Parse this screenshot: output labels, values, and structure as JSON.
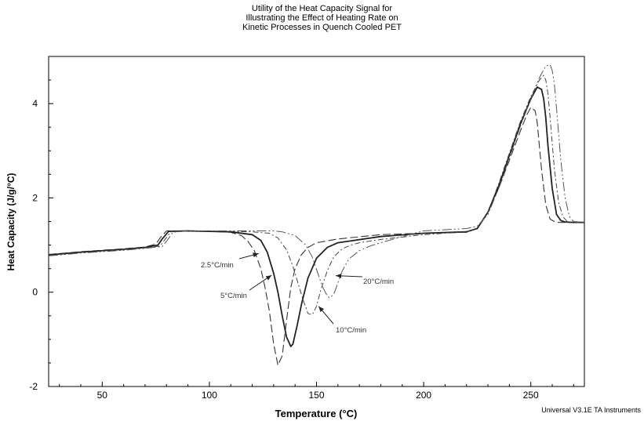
{
  "chart_data": {
    "type": "line",
    "title": [
      "Utility of the Heat Capacity Signal for",
      "Illustrating the Effect of Heating Rate on",
      "Kinetic Processes in Quench Cooled PET"
    ],
    "xlabel": "Temperature  (°C)",
    "ylabel": "Heat Capacity (J/g/°C)",
    "xlim": [
      25,
      275
    ],
    "ylim": [
      -2,
      5
    ],
    "xticks": [
      50,
      100,
      150,
      200,
      250
    ],
    "yticks": [
      -2,
      0,
      2,
      4
    ],
    "grid": false,
    "legend": "none",
    "series": [
      {
        "name": "2.5°C/min",
        "x": [
          25,
          40,
          60,
          70,
          75,
          77,
          80,
          90,
          100,
          110,
          115,
          118,
          121,
          124,
          126,
          128,
          130,
          132,
          134,
          136,
          138,
          140,
          143,
          146,
          150,
          160,
          180,
          200,
          220,
          225,
          230,
          235,
          240,
          245,
          248,
          250,
          252,
          253,
          254,
          255,
          257,
          259,
          261,
          263,
          265,
          270,
          275
        ],
        "y": [
          0.8,
          0.86,
          0.92,
          0.96,
          1.02,
          1.15,
          1.3,
          1.3,
          1.29,
          1.27,
          1.2,
          1.08,
          0.88,
          0.5,
          0.1,
          -0.4,
          -1.1,
          -1.55,
          -1.35,
          -0.6,
          0.1,
          0.5,
          0.8,
          0.95,
          1.05,
          1.13,
          1.22,
          1.25,
          1.27,
          1.35,
          1.7,
          2.2,
          2.8,
          3.4,
          3.75,
          3.92,
          3.85,
          3.6,
          3.1,
          2.6,
          1.85,
          1.55,
          1.5,
          1.48,
          1.48,
          1.48,
          1.48
        ]
      },
      {
        "name": "5°C/min",
        "x": [
          25,
          40,
          60,
          70,
          76,
          78,
          81,
          90,
          100,
          110,
          120,
          124,
          127,
          130,
          132,
          134,
          136,
          138,
          139,
          141,
          143,
          146,
          150,
          155,
          160,
          180,
          200,
          220,
          225,
          230,
          235,
          240,
          245,
          250,
          253,
          255,
          256,
          257,
          258,
          260,
          262,
          264,
          266,
          270,
          275
        ],
        "y": [
          0.79,
          0.85,
          0.91,
          0.95,
          1.0,
          1.13,
          1.29,
          1.3,
          1.29,
          1.28,
          1.22,
          1.1,
          0.85,
          0.4,
          0.0,
          -0.5,
          -0.95,
          -1.15,
          -1.1,
          -0.7,
          -0.25,
          0.3,
          0.72,
          0.95,
          1.05,
          1.18,
          1.25,
          1.28,
          1.35,
          1.7,
          2.25,
          2.9,
          3.55,
          4.1,
          4.35,
          4.3,
          4.1,
          3.7,
          3.1,
          2.2,
          1.65,
          1.52,
          1.49,
          1.48,
          1.48
        ]
      },
      {
        "name": "10°C/min",
        "x": [
          25,
          40,
          60,
          70,
          77,
          79,
          82,
          90,
          100,
          110,
          120,
          128,
          132,
          136,
          139,
          142,
          144,
          146,
          148,
          150,
          152,
          155,
          158,
          162,
          166,
          170,
          180,
          200,
          220,
          225,
          230,
          235,
          240,
          245,
          250,
          254,
          256,
          257,
          258,
          259,
          261,
          263,
          265,
          267,
          270,
          275
        ],
        "y": [
          0.78,
          0.84,
          0.9,
          0.94,
          0.98,
          1.1,
          1.28,
          1.3,
          1.3,
          1.29,
          1.28,
          1.25,
          1.15,
          0.9,
          0.55,
          0.1,
          -0.2,
          -0.45,
          -0.48,
          -0.3,
          0.05,
          0.45,
          0.75,
          0.92,
          1.0,
          1.05,
          1.12,
          1.22,
          1.28,
          1.36,
          1.7,
          2.3,
          2.95,
          3.6,
          4.15,
          4.5,
          4.6,
          4.5,
          4.2,
          3.7,
          2.6,
          1.9,
          1.6,
          1.5,
          1.48,
          1.48
        ]
      },
      {
        "name": "20°C/min",
        "x": [
          25,
          40,
          60,
          70,
          78,
          80,
          83,
          90,
          100,
          110,
          120,
          130,
          134,
          140,
          145,
          148,
          151,
          153,
          155,
          156,
          158,
          160,
          162,
          165,
          170,
          175,
          180,
          190,
          200,
          220,
          225,
          230,
          235,
          240,
          245,
          250,
          254,
          257,
          259,
          260,
          261,
          262,
          264,
          266,
          268,
          270,
          275
        ],
        "y": [
          0.77,
          0.83,
          0.89,
          0.93,
          0.97,
          1.08,
          1.27,
          1.3,
          1.3,
          1.3,
          1.3,
          1.3,
          1.28,
          1.2,
          1.0,
          0.75,
          0.35,
          0.1,
          -0.08,
          -0.12,
          -0.05,
          0.2,
          0.45,
          0.7,
          0.88,
          0.98,
          1.05,
          1.18,
          1.3,
          1.35,
          1.4,
          1.65,
          2.2,
          2.85,
          3.5,
          4.1,
          4.55,
          4.8,
          4.82,
          4.7,
          4.4,
          3.9,
          2.8,
          2.0,
          1.6,
          1.5,
          1.48
        ]
      }
    ],
    "annotations": [
      "2.5°C/min",
      "5°C/min",
      "10°C/min",
      "20°C/min"
    ],
    "footer": "Universal V3.1E TA Instruments"
  }
}
